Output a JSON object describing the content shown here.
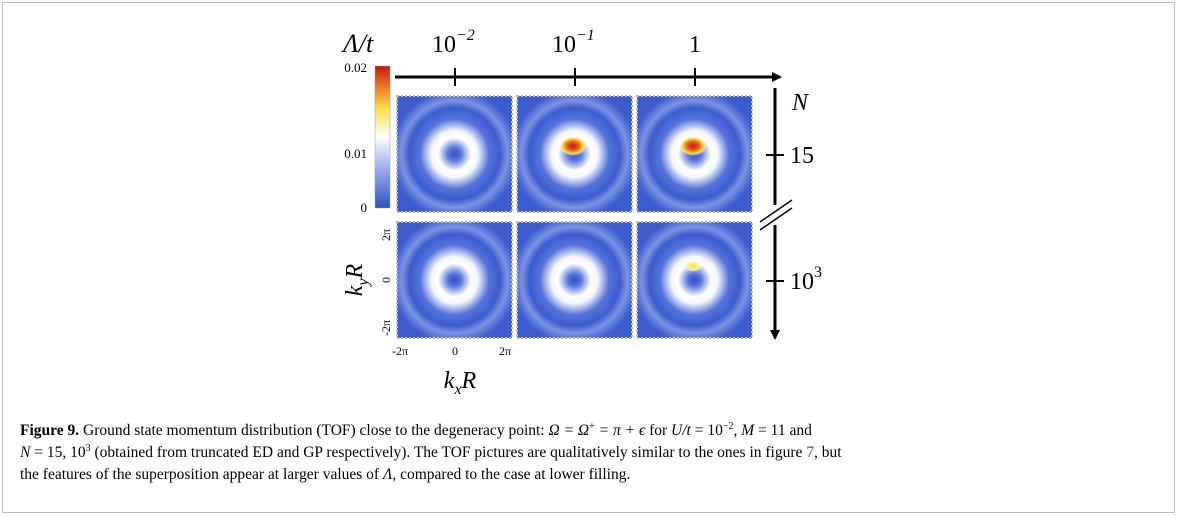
{
  "figure": {
    "top_axis_title": {
      "main": "Λ/",
      "tail": "t"
    },
    "columns": [
      {
        "base": "10",
        "sup": "−2"
      },
      {
        "base": "10",
        "sup": "−1"
      },
      {
        "base": "1"
      }
    ],
    "right_axis_title": "N",
    "rows": [
      {
        "base": "15"
      },
      {
        "base": "10",
        "sup": "3"
      }
    ],
    "colorbar_ticks": [
      "0.02",
      "0.01",
      "0"
    ],
    "y_axis_title": {
      "main": "k",
      "sub": "y",
      "tail": "R"
    },
    "y_ticks": [
      "2π",
      "0",
      "-2π"
    ],
    "x_axis_title": {
      "main": "k",
      "sub": "x",
      "tail": "R"
    },
    "x_ticks": [
      "-2π",
      "0",
      "2π"
    ]
  },
  "caption": {
    "label": "Figure 9.",
    "lines": [
      [
        {
          "text": " Ground state momentum distribution (TOF) close to the degeneracy point: ",
          "style": "normal"
        },
        {
          "text": "Ω = Ω",
          "style": "italic"
        },
        {
          "text": "+",
          "style": "sup"
        },
        {
          "text": " = π + ϵ",
          "style": "italic"
        },
        {
          "text": " for ",
          "style": "normal"
        },
        {
          "text": "U/t",
          "style": "italic"
        },
        {
          "text": " = 10",
          "style": "normal"
        },
        {
          "text": "−2",
          "style": "sup"
        },
        {
          "text": ", ",
          "style": "normal"
        },
        {
          "text": "M",
          "style": "italic"
        },
        {
          "text": " = 11 and",
          "style": "normal"
        }
      ],
      [
        {
          "text": "N",
          "style": "italic"
        },
        {
          "text": " = 15,  10",
          "style": "normal"
        },
        {
          "text": "3",
          "style": "sup"
        },
        {
          "text": " (obtained from truncated ED and GP respectively). The TOF pictures are qualitatively similar to the ones in figure ",
          "style": "normal"
        },
        {
          "text": "7",
          "style": "link"
        },
        {
          "text": ", but",
          "style": "normal"
        }
      ],
      [
        {
          "text": "the features of the superposition appear at larger values of ",
          "style": "normal"
        },
        {
          "text": "Λ",
          "style": "italic"
        },
        {
          "text": ", compared to the case at lower filling.",
          "style": "normal"
        }
      ]
    ]
  }
}
